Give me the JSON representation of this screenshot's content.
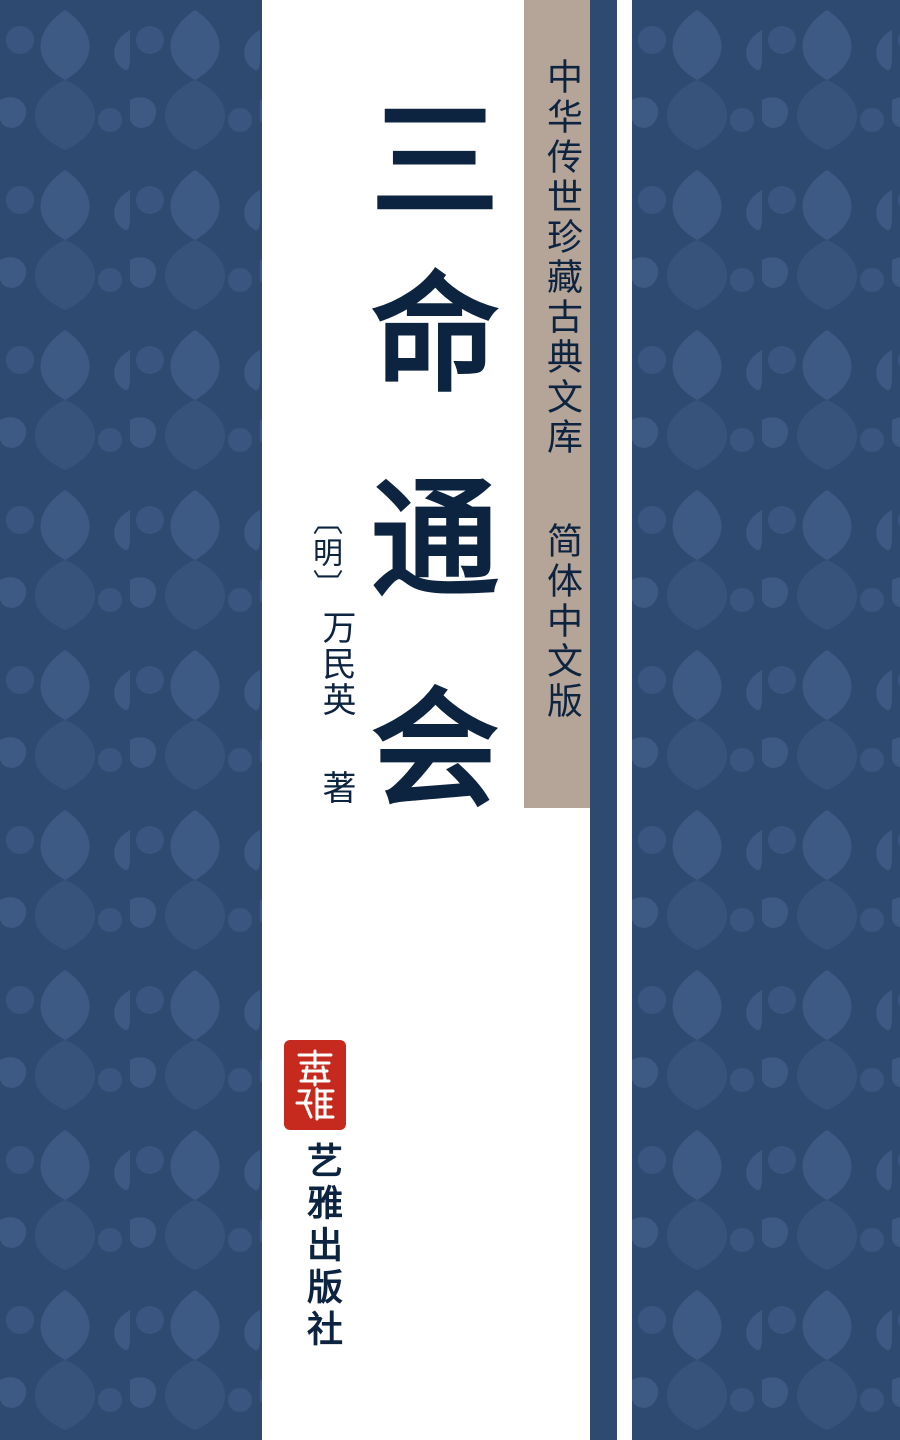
{
  "title": [
    "三",
    "命",
    "通",
    "会"
  ],
  "series": {
    "name": "中华传世珍藏古典文库",
    "edition": "简体中文版"
  },
  "author": {
    "dynasty": "〔明〕",
    "name": "万民英",
    "role": "著"
  },
  "publisher": "艺雅出版社",
  "seal": {
    "icon": "red-seal-icon"
  },
  "colors": {
    "background_blue": "#2f4a71",
    "pattern_blue": "#3c5a84",
    "title_ink": "#0d2440",
    "series_band": "#b5a498",
    "seal_red": "#c62a1e"
  }
}
